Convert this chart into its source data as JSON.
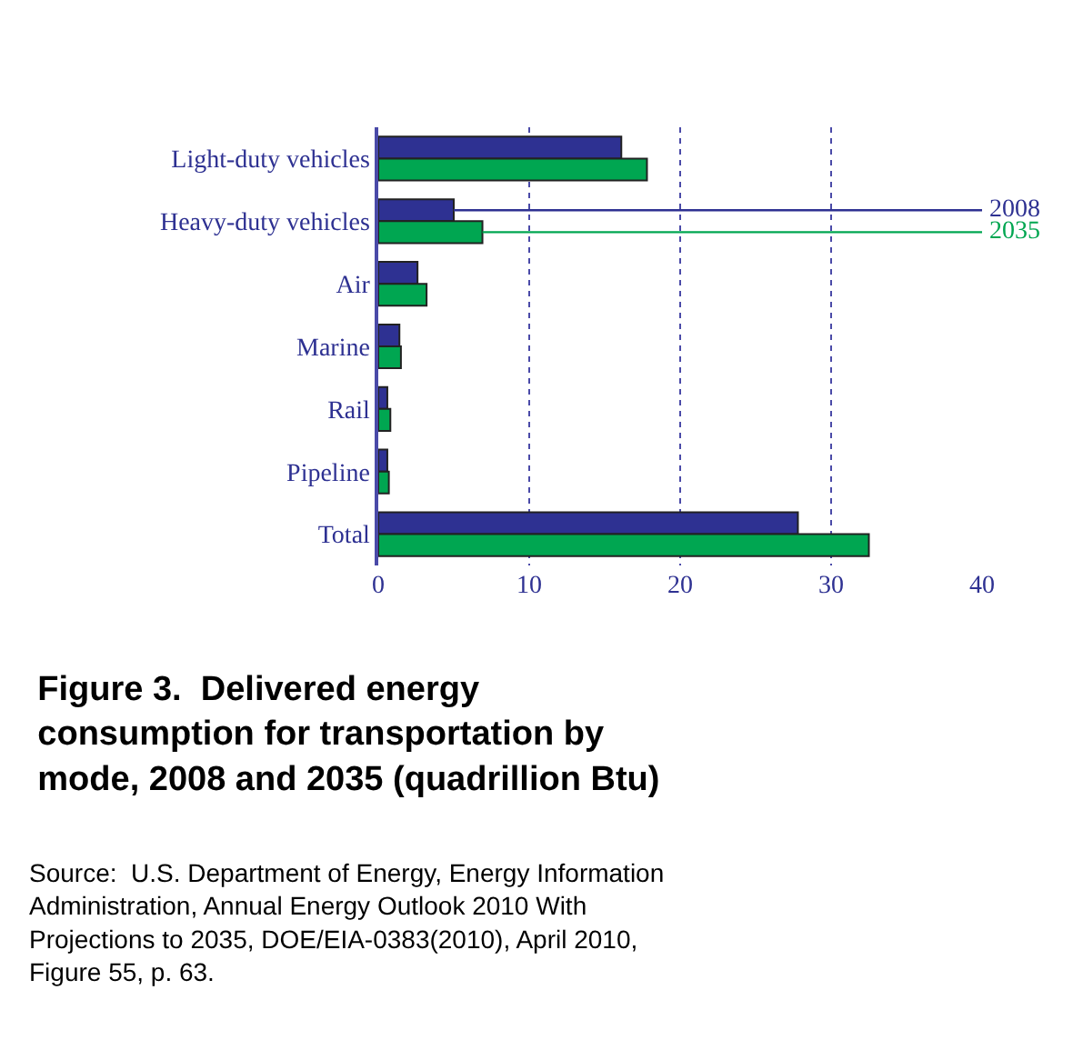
{
  "chart_data": {
    "type": "bar",
    "orientation": "horizontal",
    "title": "Figure 3.  Delivered energy consumption for transportation by mode, 2008 and 2035 (quadrillion Btu)",
    "categories": [
      "Light-duty vehicles",
      "Heavy-duty vehicles",
      "Air",
      "Marine",
      "Rail",
      "Pipeline",
      "Total"
    ],
    "series": [
      {
        "name": "2008",
        "color": "#2e3192",
        "values": [
          16.1,
          5.0,
          2.6,
          1.4,
          0.6,
          0.6,
          27.8
        ]
      },
      {
        "name": "2035",
        "color": "#00a651",
        "values": [
          17.8,
          6.9,
          3.2,
          1.5,
          0.8,
          0.7,
          32.5
        ]
      }
    ],
    "xlim": [
      0,
      40
    ],
    "xticks": [
      0,
      10,
      20,
      30,
      40
    ],
    "grid": "x",
    "legend": false,
    "annotations": [
      "Source:  U.S. Department of Energy, Energy Information Administration, Annual Energy Outlook 2010 With Projections to 2035, DOE/EIA-0383(2010), April 2010, Figure 55, p. 63."
    ]
  }
}
